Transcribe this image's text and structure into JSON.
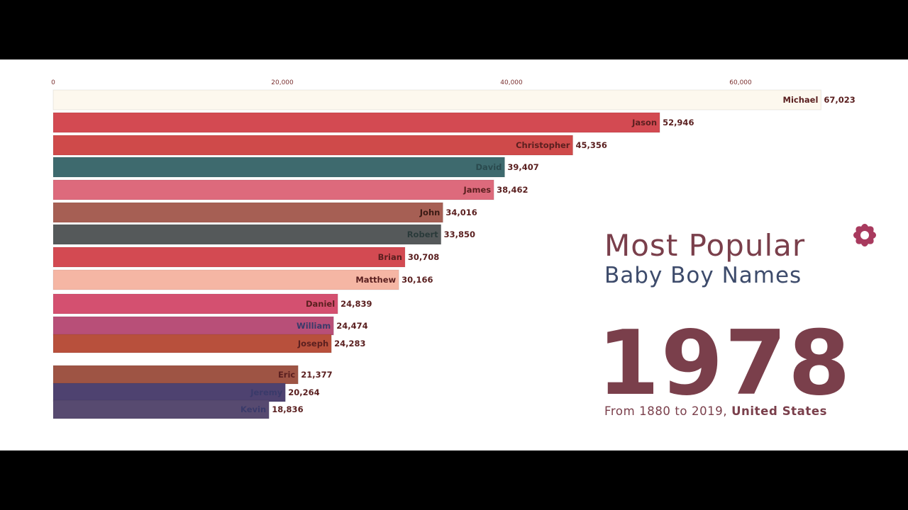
{
  "title_line1": "Most Popular",
  "title_line2": "Baby Boy Names",
  "year": "1978",
  "subtitle_prefix": "From 1880 to 2019, ",
  "subtitle_country": "United States",
  "colors": {
    "title": "#7a3f4b",
    "subtitle_blue": "#3d4b6b",
    "flower": "#a83a5e"
  },
  "chart_data": {
    "type": "bar",
    "orientation": "horizontal",
    "xlim": [
      0,
      70000
    ],
    "x_ticks": [
      {
        "value": 0,
        "label": "0"
      },
      {
        "value": 20000,
        "label": "20,000"
      },
      {
        "value": 40000,
        "label": "40,000"
      },
      {
        "value": 60000,
        "label": "60,000"
      }
    ],
    "bars": [
      {
        "name": "Michael",
        "value": 67023,
        "label": "67,023",
        "color": "#fdf8ee",
        "text_color": "#5a1f1f"
      },
      {
        "name": "Jason",
        "value": 52946,
        "label": "52,946",
        "color": "#d34a52",
        "text_color": "#5a1f1f"
      },
      {
        "name": "Christopher",
        "value": 45356,
        "label": "45,356",
        "color": "#cf4a4a",
        "text_color": "#5a1f1f"
      },
      {
        "name": "David",
        "value": 39407,
        "label": "39,407",
        "color": "#3e6a6e",
        "text_color": "#2a4a4e"
      },
      {
        "name": "James",
        "value": 38462,
        "label": "38,462",
        "color": "#dd6a7c",
        "text_color": "#5a1f1f"
      },
      {
        "name": "John",
        "value": 34016,
        "label": "34,016",
        "color": "#a65f54",
        "text_color": "#3a1a14"
      },
      {
        "name": "Robert",
        "value": 33850,
        "label": "33,850",
        "color": "#55595a",
        "text_color": "#2a3a3a"
      },
      {
        "name": "Brian",
        "value": 30708,
        "label": "30,708",
        "color": "#d34a52",
        "text_color": "#5a1f1f"
      },
      {
        "name": "Matthew",
        "value": 30166,
        "label": "30,166",
        "color": "#f5b6a4",
        "text_color": "#5a1f1f"
      },
      {
        "name": "Daniel",
        "value": 24839,
        "label": "24,839",
        "color": "#d45070",
        "text_color": "#5a1f1f"
      },
      {
        "name": "William",
        "value": 24474,
        "label": "24,474",
        "color": "#b84f78",
        "text_color": "#3a3a6a"
      },
      {
        "name": "Joseph",
        "value": 24283,
        "label": "24,283",
        "color": "#b8503c",
        "text_color": "#5a1f1f"
      },
      {
        "name": "Eric",
        "value": 21377,
        "label": "21,377",
        "color": "#9e5444",
        "text_color": "#5a1f1f"
      },
      {
        "name": "Jeremy",
        "value": 20264,
        "label": "20,264",
        "color": "#4e4270",
        "text_color": "#3a3a6a"
      },
      {
        "name": "Kevin",
        "value": 18836,
        "label": "18,836",
        "color": "#574a70",
        "text_color": "#3a3a6a"
      }
    ]
  }
}
